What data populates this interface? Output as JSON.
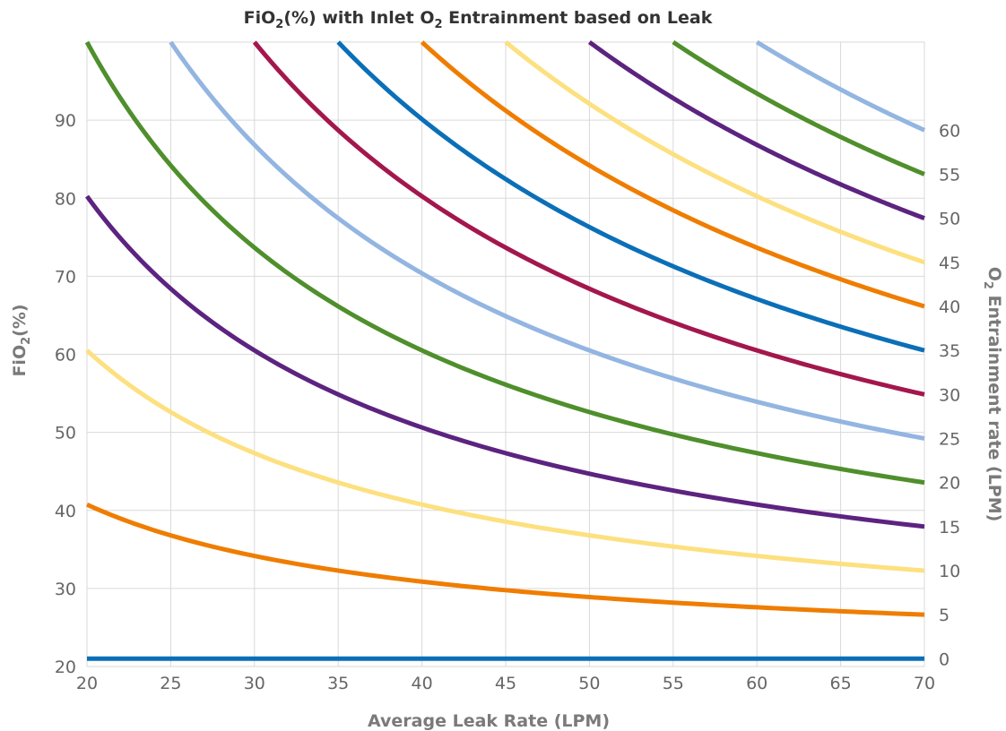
{
  "chart_data": {
    "type": "line",
    "title_main": "FiO",
    "title_sub": "2",
    "title_rest": "(%) with Inlet O",
    "title_sub2": "2",
    "title_end": " Entrainment based on Leak",
    "xlabel": "Average Leak Rate (LPM)",
    "ylabel_main": "FiO",
    "ylabel_sub": "2",
    "ylabel_end": "(%)",
    "y2label_main": "O",
    "y2label_sub": "2",
    "y2label_end": " Entrainment rate (LPM)",
    "xlim": [
      20,
      70
    ],
    "ylim": [
      20,
      100
    ],
    "x_ticks": [
      20,
      25,
      30,
      35,
      40,
      45,
      50,
      55,
      60,
      65,
      70
    ],
    "y_ticks": [
      20,
      30,
      40,
      50,
      60,
      70,
      80,
      90
    ],
    "y2_ticks": [
      0,
      5,
      10,
      15,
      20,
      25,
      30,
      35,
      40,
      45,
      50,
      55,
      60
    ],
    "grid": true,
    "series": [
      {
        "entrainment": 0,
        "color": "#0b6fb8"
      },
      {
        "entrainment": 5,
        "color": "#ef7d00"
      },
      {
        "entrainment": 10,
        "color": "#fde07f"
      },
      {
        "entrainment": 15,
        "color": "#5c2380"
      },
      {
        "entrainment": 20,
        "color": "#4f8f2c"
      },
      {
        "entrainment": 25,
        "color": "#93b5e1"
      },
      {
        "entrainment": 30,
        "color": "#a3174d"
      },
      {
        "entrainment": 35,
        "color": "#0b6fb8"
      },
      {
        "entrainment": 40,
        "color": "#ef7d00"
      },
      {
        "entrainment": 45,
        "color": "#fde07f"
      },
      {
        "entrainment": 50,
        "color": "#5c2380"
      },
      {
        "entrainment": 55,
        "color": "#4f8f2c"
      },
      {
        "entrainment": 60,
        "color": "#93b5e1"
      }
    ],
    "formula": "FiO2 = 21 + 79 * E / Leak"
  },
  "colors": {
    "grid": "#d9d9d9",
    "title": "#333333",
    "axis_title": "#7a7a7a",
    "tick": "#666666"
  }
}
